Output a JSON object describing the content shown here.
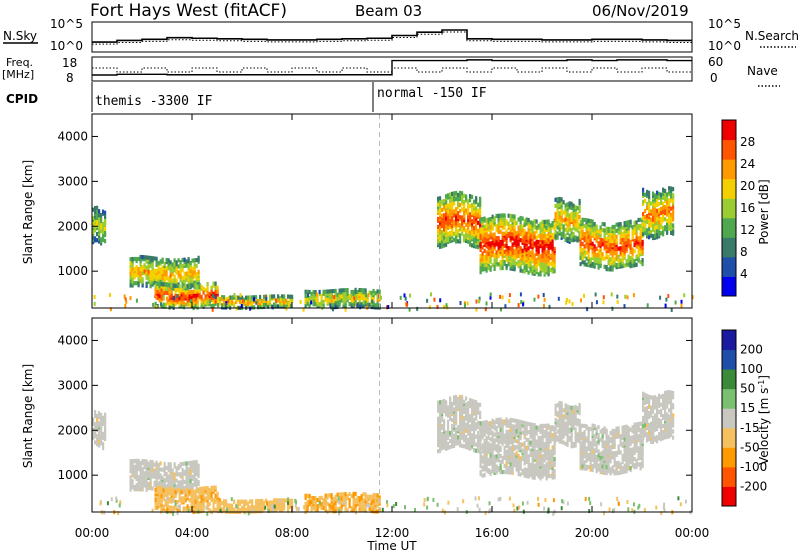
{
  "header": {
    "radar": "Fort Hays West (fitACF)",
    "beam": "Beam 03",
    "date": "06/Nov/2019"
  },
  "top_panels": {
    "nsky_label": "N.Sky",
    "nsearch_label": "N.Search",
    "left_ticks": [
      "10^5",
      "10^0"
    ],
    "right_ticks": [
      "10^5",
      "10^0"
    ],
    "freq_label_1": "Freq.",
    "freq_label_2": "[MHz]",
    "freq_ticks": [
      "18",
      "8"
    ],
    "nave_label": "Nave",
    "nave_ticks": [
      "60",
      "0"
    ],
    "cpid_label": "CPID",
    "cpid_1": "themis -3300 IF",
    "cpid_2": "normal -150 IF"
  },
  "axes": {
    "ylabel": "Slant Range [km]",
    "xlabel": "Time UT",
    "yticks": [
      "4000",
      "3000",
      "2000",
      "1000"
    ],
    "xticks": [
      "00:00",
      "04:00",
      "08:00",
      "12:00",
      "16:00",
      "20:00",
      "00:00"
    ]
  },
  "colorbar_power": {
    "label": "Power [dB]",
    "ticks": [
      "28",
      "24",
      "20",
      "16",
      "12",
      "8",
      "4"
    ]
  },
  "colorbar_velocity": {
    "label": "Velocity [m s",
    "label_sup": "-1",
    "label_end": "]",
    "ticks": [
      "200",
      "100",
      "50",
      "15",
      "-15",
      "-50",
      "-100",
      "-200"
    ]
  },
  "colors": {
    "power": [
      "#0000ee",
      "#1f4fa8",
      "#3a7a6a",
      "#4fa84f",
      "#9acd32",
      "#f5d000",
      "#ff9900",
      "#ff5500",
      "#ee0000"
    ],
    "velocity": [
      "#ee0000",
      "#ff5500",
      "#ff9900",
      "#f5c060",
      "#c8c8c0",
      "#7ac070",
      "#3a8a3a",
      "#1f4fa8",
      "#1a1aa0"
    ],
    "ground_scatter": "#c8c8c0"
  },
  "chart_data": {
    "type": "heatmap",
    "title": "Fort Hays West (fitACF) Beam 03 06/Nov/2019",
    "xlabel": "Time UT",
    "ylabel": "Slant Range [km]",
    "xlim": [
      0,
      24
    ],
    "ylim": [
      180,
      4500
    ],
    "series": [
      {
        "name": "Power",
        "units": "dB",
        "range": [
          0,
          30
        ]
      },
      {
        "name": "Velocity",
        "units": "m s-1",
        "range": [
          -250,
          250
        ]
      }
    ],
    "echo_regions": [
      {
        "t0": 0.0,
        "t1": 0.5,
        "r0": 1650,
        "r1": 2400,
        "power": 14,
        "velocity": 0
      },
      {
        "t0": 1.5,
        "t1": 4.3,
        "r0": 650,
        "r1": 1300,
        "power": 18,
        "velocity": -20
      },
      {
        "t0": 2.5,
        "t1": 5.0,
        "r0": 200,
        "r1": 700,
        "power": 24,
        "velocity": -40
      },
      {
        "t0": 5.0,
        "t1": 8.0,
        "r0": 200,
        "r1": 450,
        "power": 18,
        "velocity": -35
      },
      {
        "t0": 8.5,
        "t1": 11.5,
        "r0": 200,
        "r1": 600,
        "power": 16,
        "velocity": -45
      },
      {
        "t0": 13.8,
        "t1": 15.5,
        "r0": 1600,
        "r1": 2700,
        "power": 22,
        "velocity": 5
      },
      {
        "t0": 15.5,
        "t1": 18.5,
        "r0": 1000,
        "r1": 2200,
        "power": 24,
        "velocity": 0
      },
      {
        "t0": 18.5,
        "t1": 19.5,
        "r0": 1700,
        "r1": 2600,
        "power": 18,
        "velocity": 5
      },
      {
        "t0": 19.5,
        "t1": 22.0,
        "r0": 1100,
        "r1": 2100,
        "power": 22,
        "velocity": 0
      },
      {
        "t0": 22.0,
        "t1": 23.2,
        "r0": 1800,
        "r1": 2800,
        "power": 20,
        "velocity": 0
      }
    ],
    "nsky_level": [
      1.8,
      2.1,
      2.3,
      2.6,
      2.5,
      2.4,
      2.3,
      2.2,
      2.2,
      2.3,
      2.4,
      2.5,
      3.0,
      3.6,
      4.0,
      2.4,
      2.3,
      2.3,
      2.2,
      2.2,
      2.3,
      2.3,
      2.2,
      2.1
    ],
    "freq_mhz": [
      10.5,
      10.8,
      10.8,
      10.6,
      10.6,
      10.6,
      10.6,
      10.6,
      10.6,
      10.6,
      10.6,
      10.6,
      16.5,
      16.5,
      16.5,
      16.8,
      16.5,
      16.5,
      16.5,
      16.8,
      16.5,
      16.8,
      16.8,
      16.5
    ]
  }
}
